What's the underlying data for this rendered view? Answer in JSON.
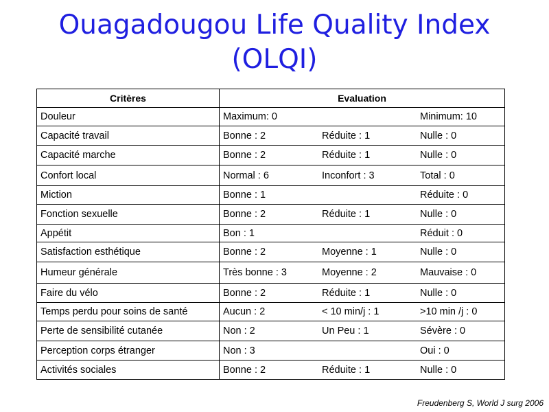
{
  "title": {
    "line1": "Ouagadougou Life Quality Index",
    "line2": "(OLQI)"
  },
  "table": {
    "headers": [
      "Critères",
      "Evaluation"
    ],
    "rows": [
      {
        "criterion": "Douleur",
        "evals": [
          "Maximum: 0",
          "",
          "Minimum: 10"
        ]
      },
      {
        "criterion": "Capacité travail",
        "evals": [
          "Bonne : 2",
          "Réduite : 1",
          "Nulle : 0"
        ]
      },
      {
        "criterion": "Capacité marche",
        "evals": [
          "Bonne : 2",
          "Réduite : 1",
          "Nulle : 0"
        ]
      },
      {
        "criterion": "Confort local",
        "evals": [
          "Normal : 6",
          "Inconfort : 3",
          "Total : 0"
        ]
      },
      {
        "criterion": "Miction",
        "evals": [
          "Bonne : 1",
          "",
          "Réduite : 0"
        ]
      },
      {
        "criterion": "Fonction sexuelle",
        "evals": [
          "Bonne : 2",
          "Réduite : 1",
          "Nulle : 0"
        ]
      },
      {
        "criterion": "Appétit",
        "evals": [
          "Bon : 1",
          "",
          "Réduit : 0"
        ]
      },
      {
        "criterion": "Satisfaction esthétique",
        "evals": [
          "Bonne : 2",
          "Moyenne : 1",
          "Nulle : 0"
        ]
      },
      {
        "criterion": "Humeur générale",
        "evals": [
          "Très bonne : 3",
          "Moyenne : 2",
          "Mauvaise : 0"
        ]
      },
      {
        "criterion": "Faire du vélo",
        "evals": [
          "Bonne : 2",
          "Réduite : 1",
          "Nulle : 0"
        ]
      },
      {
        "criterion": "Temps perdu pour soins de santé",
        "evals": [
          "Aucun : 2",
          "< 10 min/j : 1",
          ">10 min /j : 0"
        ]
      },
      {
        "criterion": "Perte de sensibilité cutanée",
        "evals": [
          "Non : 2",
          "Un Peu : 1",
          "Sévère : 0"
        ]
      },
      {
        "criterion": "Perception corps étranger",
        "evals": [
          "Non : 3",
          "",
          "Oui : 0"
        ]
      },
      {
        "criterion": "Activités sociales",
        "evals": [
          "Bonne : 2",
          "Réduite : 1",
          "Nulle : 0"
        ]
      }
    ]
  },
  "citation": "Freudenberg S, World J surg 2006"
}
